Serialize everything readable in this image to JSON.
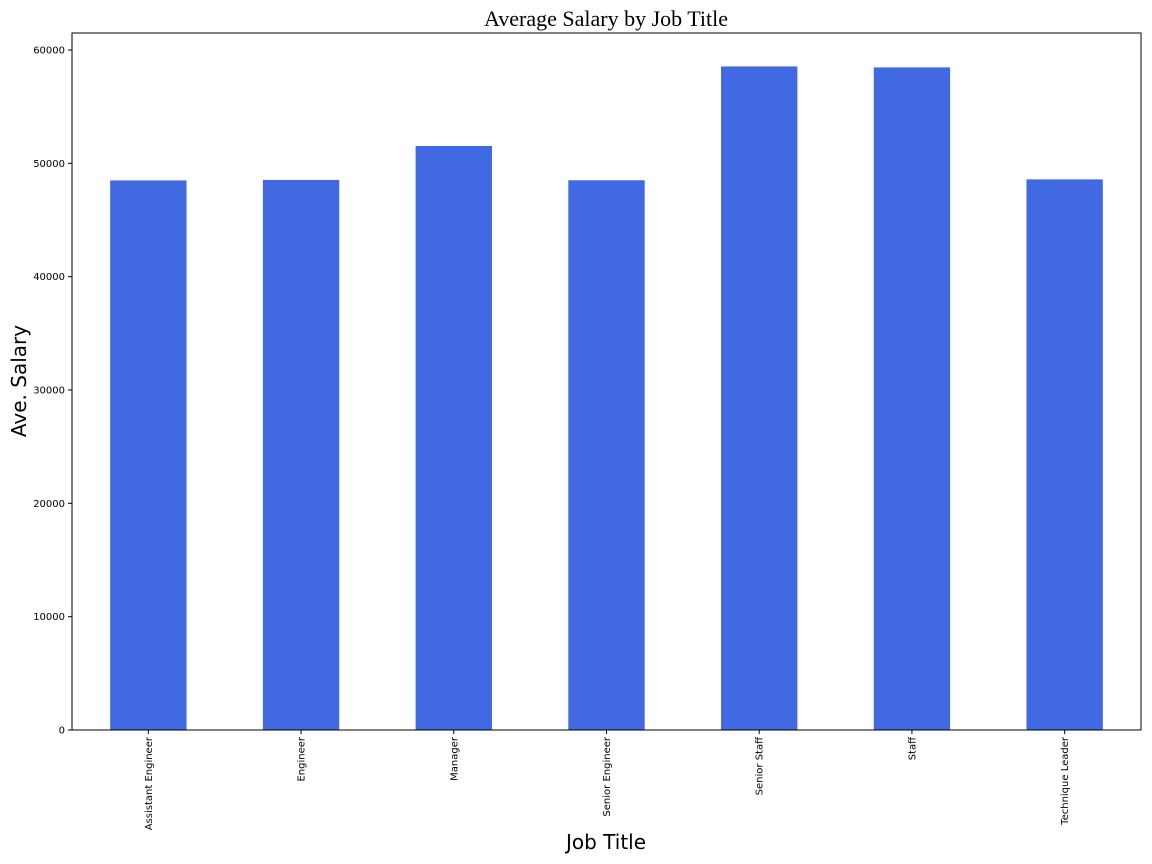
{
  "chart_data": {
    "type": "bar",
    "title": "Average Salary by Job Title",
    "xlabel": "Job Title",
    "ylabel": "Ave. Salary",
    "categories": [
      "Assistant Engineer",
      "Engineer",
      "Manager",
      "Senior Engineer",
      "Senior Staff",
      "Staff",
      "Technique Leader"
    ],
    "values": [
      48494,
      48535,
      51531,
      48507,
      58550,
      58465,
      48583
    ],
    "ylim": [
      0,
      61500
    ],
    "yticks": [
      0,
      10000,
      20000,
      30000,
      40000,
      50000,
      60000
    ],
    "bar_color": "#4169e1",
    "grid": false,
    "legend": false
  }
}
